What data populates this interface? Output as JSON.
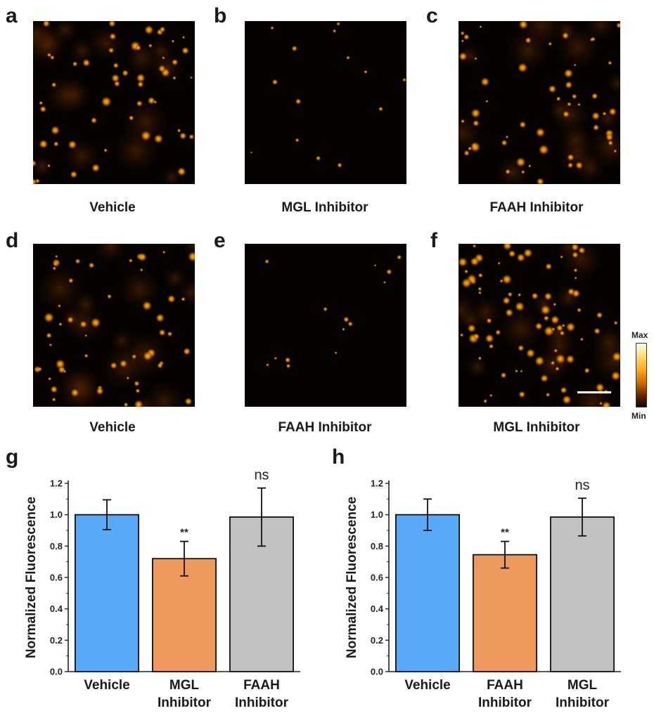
{
  "figure": {
    "panels": [
      {
        "letter": "a",
        "caption": "Vehicle",
        "image": "fluorescence-micrograph",
        "intensity": "moderate"
      },
      {
        "letter": "b",
        "caption": "MGL Inhibitor",
        "image": "fluorescence-micrograph",
        "intensity": "low"
      },
      {
        "letter": "c",
        "caption": "FAAH Inhibitor",
        "image": "fluorescence-micrograph",
        "intensity": "moderate"
      },
      {
        "letter": "d",
        "caption": "Vehicle",
        "image": "fluorescence-micrograph",
        "intensity": "moderate"
      },
      {
        "letter": "e",
        "caption": "FAAH Inhibitor",
        "image": "fluorescence-micrograph",
        "intensity": "low"
      },
      {
        "letter": "f",
        "caption": "MGL Inhibitor",
        "image": "fluorescence-micrograph",
        "intensity": "high"
      }
    ],
    "colorbar": {
      "max_label": "Max",
      "min_label": "Min"
    }
  },
  "chart_data": [
    {
      "letter": "g",
      "type": "bar",
      "categories": [
        [
          "Vehicle"
        ],
        [
          "MGL",
          "Inhibitor"
        ],
        [
          "FAAH",
          "Inhibitor"
        ]
      ],
      "values": [
        1.0,
        0.72,
        0.985
      ],
      "errors": [
        0.095,
        0.11,
        0.185
      ],
      "annotations": [
        "",
        "**",
        "ns"
      ],
      "colors": [
        "#5aa9f8",
        "#ee9a5e",
        "#c2c2c2"
      ],
      "ylabel": "Normalized Fluorescence",
      "ylim": [
        0,
        1.2
      ],
      "yticks": [
        "0.0",
        "0.2",
        "0.4",
        "0.6",
        "0.8",
        "1.0",
        "1.2"
      ]
    },
    {
      "letter": "h",
      "type": "bar",
      "categories": [
        [
          "Vehicle"
        ],
        [
          "FAAH",
          "Inhibitor"
        ],
        [
          "MGL",
          "Inhibitor"
        ]
      ],
      "values": [
        1.0,
        0.745,
        0.985
      ],
      "errors": [
        0.1,
        0.085,
        0.12
      ],
      "annotations": [
        "",
        "**",
        "ns"
      ],
      "colors": [
        "#5aa9f8",
        "#ee9a5e",
        "#c2c2c2"
      ],
      "ylabel": "Normalized Fluorescence",
      "ylim": [
        0,
        1.2
      ],
      "yticks": [
        "0.0",
        "0.2",
        "0.4",
        "0.6",
        "0.8",
        "1.0",
        "1.2"
      ]
    }
  ]
}
